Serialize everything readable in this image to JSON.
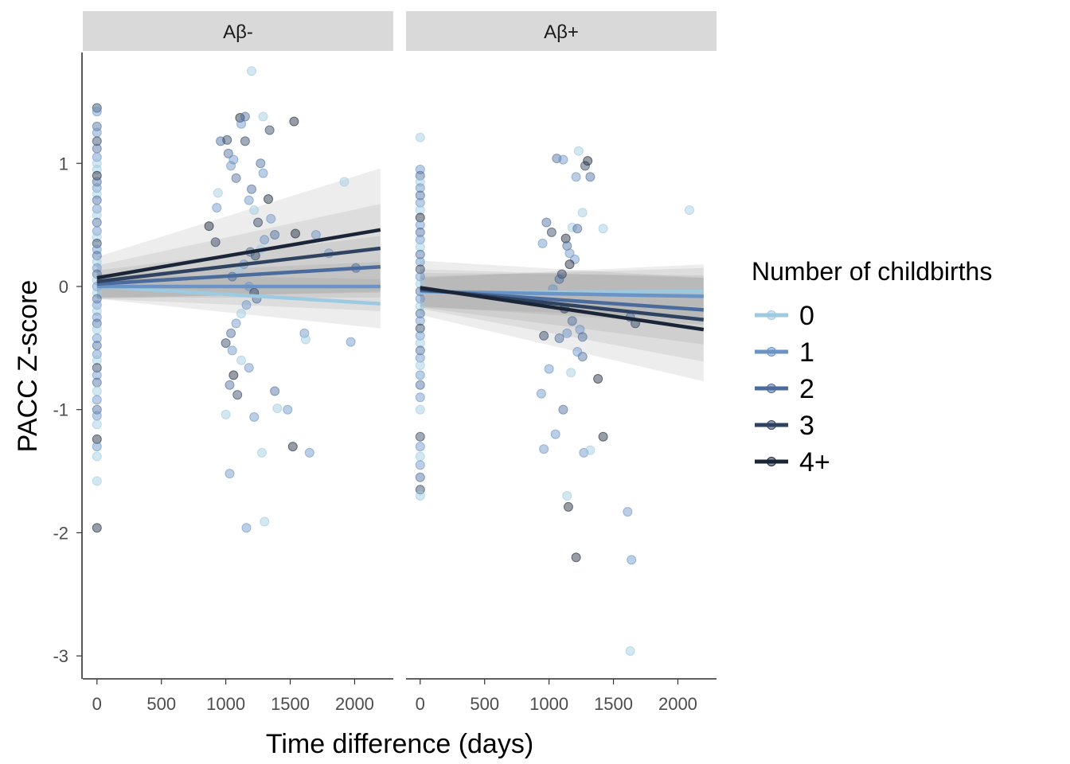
{
  "chart_data": {
    "type": "scatter",
    "xlabel": "Time difference (days)",
    "ylabel": "PACC Z-score",
    "xlim": [
      -110,
      2300
    ],
    "ylim": [
      -3.18,
      1.9
    ],
    "x_ticks": [
      0,
      500,
      1000,
      1500,
      2000
    ],
    "y_ticks": [
      1,
      0,
      -1,
      -2,
      -3
    ],
    "grid": false,
    "legend": {
      "title": "Number of childbirths",
      "placement": "right",
      "entries": [
        {
          "label": "0",
          "color": "#9ecae1"
        },
        {
          "label": "1",
          "color": "#6b93c5"
        },
        {
          "label": "2",
          "color": "#4a6b9b"
        },
        {
          "label": "3",
          "color": "#2f4360"
        },
        {
          "label": "4+",
          "color": "#1b2538"
        }
      ]
    },
    "panels": [
      {
        "strip": "Aβ-",
        "lines": [
          {
            "group": "0",
            "x": [
              0,
              2200
            ],
            "y": [
              0.0,
              -0.14
            ],
            "ci_halfwidth": [
              0.1,
              0.2
            ]
          },
          {
            "group": "1",
            "x": [
              0,
              2200
            ],
            "y": [
              0.0,
              0.0
            ],
            "ci_halfwidth": [
              0.1,
              0.2
            ]
          },
          {
            "group": "2",
            "x": [
              0,
              2200
            ],
            "y": [
              0.02,
              0.16
            ],
            "ci_halfwidth": [
              0.11,
              0.25
            ]
          },
          {
            "group": "3",
            "x": [
              0,
              2200
            ],
            "y": [
              0.04,
              0.31
            ],
            "ci_halfwidth": [
              0.13,
              0.36
            ]
          },
          {
            "group": "4+",
            "x": [
              0,
              2200
            ],
            "y": [
              0.07,
              0.46
            ],
            "ci_halfwidth": [
              0.17,
              0.5
            ]
          }
        ],
        "points": [
          [
            0,
            1.45,
            "3"
          ],
          [
            0,
            1.42,
            "1"
          ],
          [
            0,
            1.3,
            "2"
          ],
          [
            0,
            1.25,
            "1"
          ],
          [
            0,
            1.18,
            "3"
          ],
          [
            0,
            1.12,
            "2"
          ],
          [
            0,
            1.05,
            "1"
          ],
          [
            0,
            1.0,
            "0"
          ],
          [
            0,
            0.95,
            "0"
          ],
          [
            0,
            0.9,
            "4+"
          ],
          [
            0,
            0.85,
            "2"
          ],
          [
            0,
            0.8,
            "1"
          ],
          [
            0,
            0.75,
            "0"
          ],
          [
            0,
            0.7,
            "2"
          ],
          [
            0,
            0.63,
            "1"
          ],
          [
            0,
            0.58,
            "0"
          ],
          [
            0,
            0.52,
            "2"
          ],
          [
            0,
            0.45,
            "1"
          ],
          [
            0,
            0.4,
            "0"
          ],
          [
            0,
            0.35,
            "3"
          ],
          [
            0,
            0.3,
            "1"
          ],
          [
            0,
            0.25,
            "2"
          ],
          [
            0,
            0.2,
            "0"
          ],
          [
            0,
            0.15,
            "1"
          ],
          [
            0,
            0.1,
            "2"
          ],
          [
            0,
            0.05,
            "0"
          ],
          [
            0,
            0.0,
            "1"
          ],
          [
            0,
            -0.05,
            "0"
          ],
          [
            0,
            -0.1,
            "2"
          ],
          [
            0,
            -0.15,
            "1"
          ],
          [
            0,
            -0.2,
            "0"
          ],
          [
            0,
            -0.25,
            "1"
          ],
          [
            0,
            -0.3,
            "2"
          ],
          [
            0,
            -0.35,
            "0"
          ],
          [
            0,
            -0.42,
            "1"
          ],
          [
            0,
            -0.48,
            "2"
          ],
          [
            0,
            -0.55,
            "1"
          ],
          [
            0,
            -0.6,
            "0"
          ],
          [
            0,
            -0.66,
            "3"
          ],
          [
            0,
            -0.72,
            "1"
          ],
          [
            0,
            -0.78,
            "2"
          ],
          [
            0,
            -0.85,
            "0"
          ],
          [
            0,
            -0.92,
            "1"
          ],
          [
            0,
            -1.0,
            "2"
          ],
          [
            0,
            -1.05,
            "1"
          ],
          [
            0,
            -1.12,
            "0"
          ],
          [
            0,
            -1.24,
            "4+"
          ],
          [
            0,
            -1.3,
            "1"
          ],
          [
            0,
            -1.38,
            "0"
          ],
          [
            0,
            -1.58,
            "0"
          ],
          [
            0,
            -1.96,
            "4+"
          ],
          [
            870,
            0.49,
            "4+"
          ],
          [
            960,
            1.18,
            "2"
          ],
          [
            940,
            0.76,
            "0"
          ],
          [
            930,
            0.64,
            "1"
          ],
          [
            920,
            0.36,
            "3"
          ],
          [
            1010,
            1.19,
            "3"
          ],
          [
            1020,
            1.08,
            "2"
          ],
          [
            1060,
            1.03,
            "1"
          ],
          [
            1040,
            0.98,
            "1"
          ],
          [
            1080,
            0.88,
            "2"
          ],
          [
            1110,
            1.37,
            "4+"
          ],
          [
            1120,
            1.32,
            "1"
          ],
          [
            1150,
            1.38,
            "2"
          ],
          [
            1150,
            1.18,
            "3"
          ],
          [
            1200,
            1.75,
            "0"
          ],
          [
            1200,
            0.79,
            "2"
          ],
          [
            1180,
            0.7,
            "1"
          ],
          [
            1220,
            0.62,
            "0"
          ],
          [
            1250,
            0.52,
            "3"
          ],
          [
            1270,
            1.0,
            "2"
          ],
          [
            1290,
            0.92,
            "1"
          ],
          [
            1330,
            0.71,
            "4+"
          ],
          [
            1350,
            0.55,
            "1"
          ],
          [
            1380,
            0.42,
            "2"
          ],
          [
            1300,
            0.38,
            "1"
          ],
          [
            1270,
            0.3,
            "0"
          ],
          [
            1230,
            0.25,
            "3"
          ],
          [
            1190,
            0.28,
            "2"
          ],
          [
            1140,
            0.18,
            "1"
          ],
          [
            1100,
            0.12,
            "0"
          ],
          [
            1050,
            0.08,
            "2"
          ],
          [
            1180,
            0.0,
            "1"
          ],
          [
            1220,
            -0.05,
            "3"
          ],
          [
            1240,
            -0.1,
            "2"
          ],
          [
            1160,
            -0.15,
            "1"
          ],
          [
            1120,
            -0.22,
            "0"
          ],
          [
            1080,
            -0.3,
            "1"
          ],
          [
            1040,
            -0.38,
            "2"
          ],
          [
            1000,
            -0.46,
            "3"
          ],
          [
            1050,
            -0.52,
            "1"
          ],
          [
            1120,
            -0.6,
            "0"
          ],
          [
            1180,
            -0.66,
            "1"
          ],
          [
            1060,
            -0.72,
            "4+"
          ],
          [
            1030,
            -0.8,
            "2"
          ],
          [
            1090,
            -0.88,
            "3"
          ],
          [
            1220,
            -1.06,
            "1"
          ],
          [
            1280,
            -1.35,
            "0"
          ],
          [
            1300,
            -1.91,
            "0"
          ],
          [
            1160,
            -1.96,
            "1"
          ],
          [
            1030,
            -1.52,
            "1"
          ],
          [
            1000,
            -1.04,
            "0"
          ],
          [
            1380,
            -0.85,
            "2"
          ],
          [
            1480,
            -1.0,
            "1"
          ],
          [
            1400,
            -0.99,
            "0"
          ],
          [
            1520,
            -1.3,
            "4+"
          ],
          [
            1650,
            -1.35,
            "1"
          ],
          [
            1610,
            -0.38,
            "1"
          ],
          [
            1620,
            -0.43,
            "0"
          ],
          [
            1540,
            0.43,
            "4+"
          ],
          [
            1530,
            1.34,
            "4+"
          ],
          [
            1340,
            1.27,
            "3"
          ],
          [
            1290,
            1.38,
            "0"
          ],
          [
            1700,
            0.42,
            "1"
          ],
          [
            1800,
            0.27,
            "1"
          ],
          [
            1920,
            0.85,
            "0"
          ],
          [
            1970,
            -0.45,
            "1"
          ],
          [
            2010,
            0.15,
            "2"
          ]
        ]
      },
      {
        "strip": "Aβ+",
        "lines": [
          {
            "group": "0",
            "x": [
              0,
              2200
            ],
            "y": [
              -0.05,
              -0.04
            ],
            "ci_halfwidth": [
              0.12,
              0.22
            ]
          },
          {
            "group": "1",
            "x": [
              0,
              2200
            ],
            "y": [
              -0.04,
              -0.08
            ],
            "ci_halfwidth": [
              0.12,
              0.23
            ]
          },
          {
            "group": "2",
            "x": [
              0,
              2200
            ],
            "y": [
              -0.03,
              -0.19
            ],
            "ci_halfwidth": [
              0.14,
              0.28
            ]
          },
          {
            "group": "3",
            "x": [
              0,
              2200
            ],
            "y": [
              -0.02,
              -0.27
            ],
            "ci_halfwidth": [
              0.16,
              0.34
            ]
          },
          {
            "group": "4+",
            "x": [
              0,
              2200
            ],
            "y": [
              -0.01,
              -0.35
            ],
            "ci_halfwidth": [
              0.22,
              0.42
            ]
          }
        ],
        "points": [
          [
            0,
            1.21,
            "0"
          ],
          [
            0,
            0.95,
            "1"
          ],
          [
            0,
            0.9,
            "2"
          ],
          [
            0,
            0.85,
            "0"
          ],
          [
            0,
            0.8,
            "1"
          ],
          [
            0,
            0.74,
            "2"
          ],
          [
            0,
            0.68,
            "1"
          ],
          [
            0,
            0.62,
            "0"
          ],
          [
            0,
            0.56,
            "4+"
          ],
          [
            0,
            0.5,
            "1"
          ],
          [
            0,
            0.44,
            "2"
          ],
          [
            0,
            0.38,
            "1"
          ],
          [
            0,
            0.32,
            "0"
          ],
          [
            0,
            0.26,
            "2"
          ],
          [
            0,
            0.2,
            "1"
          ],
          [
            0,
            0.14,
            "3"
          ],
          [
            0,
            0.08,
            "1"
          ],
          [
            0,
            0.02,
            "0"
          ],
          [
            0,
            -0.04,
            "2"
          ],
          [
            0,
            -0.1,
            "1"
          ],
          [
            0,
            -0.16,
            "0"
          ],
          [
            0,
            -0.22,
            "2"
          ],
          [
            0,
            -0.28,
            "1"
          ],
          [
            0,
            -0.34,
            "3"
          ],
          [
            0,
            -0.4,
            "1"
          ],
          [
            0,
            -0.46,
            "0"
          ],
          [
            0,
            -0.52,
            "2"
          ],
          [
            0,
            -0.58,
            "1"
          ],
          [
            0,
            -0.64,
            "0"
          ],
          [
            0,
            -0.72,
            "1"
          ],
          [
            0,
            -0.8,
            "2"
          ],
          [
            0,
            -0.9,
            "1"
          ],
          [
            0,
            -1.0,
            "0"
          ],
          [
            0,
            -1.22,
            "3"
          ],
          [
            0,
            -1.3,
            "1"
          ],
          [
            0,
            -1.38,
            "0"
          ],
          [
            0,
            -1.45,
            "1"
          ],
          [
            0,
            -1.55,
            "2"
          ],
          [
            0,
            -1.65,
            "3"
          ],
          [
            0,
            -1.7,
            "0"
          ],
          [
            950,
            0.35,
            "1"
          ],
          [
            980,
            0.52,
            "2"
          ],
          [
            1020,
            0.44,
            "3"
          ],
          [
            1060,
            1.04,
            "2"
          ],
          [
            1110,
            1.03,
            "1"
          ],
          [
            1130,
            0.39,
            "4+"
          ],
          [
            1140,
            0.33,
            "2"
          ],
          [
            1160,
            0.27,
            "1"
          ],
          [
            1180,
            0.48,
            "0"
          ],
          [
            1210,
            0.89,
            "1"
          ],
          [
            1230,
            1.1,
            "0"
          ],
          [
            1260,
            0.6,
            "0"
          ],
          [
            1280,
            0.98,
            "3"
          ],
          [
            1300,
            1.02,
            "4+"
          ],
          [
            1320,
            0.89,
            "2"
          ],
          [
            1220,
            0.47,
            "2"
          ],
          [
            1200,
            0.22,
            "1"
          ],
          [
            1160,
            0.18,
            "4+"
          ],
          [
            1100,
            0.1,
            "3"
          ],
          [
            1080,
            0.06,
            "2"
          ],
          [
            1030,
            -0.02,
            "1"
          ],
          [
            1120,
            -0.18,
            "3"
          ],
          [
            1180,
            -0.28,
            "2"
          ],
          [
            1240,
            -0.35,
            "1"
          ],
          [
            1260,
            -0.41,
            "2"
          ],
          [
            1140,
            -0.38,
            "1"
          ],
          [
            1080,
            -0.42,
            "2"
          ],
          [
            960,
            -0.4,
            "3"
          ],
          [
            1000,
            -0.67,
            "1"
          ],
          [
            1170,
            -0.7,
            "0"
          ],
          [
            1260,
            -0.57,
            "2"
          ],
          [
            1220,
            -0.53,
            "1"
          ],
          [
            1380,
            -0.75,
            "4+"
          ],
          [
            940,
            -0.87,
            "1"
          ],
          [
            1110,
            -1.0,
            "2"
          ],
          [
            1050,
            -1.2,
            "1"
          ],
          [
            960,
            -1.32,
            "1"
          ],
          [
            1270,
            -1.35,
            "1"
          ],
          [
            1320,
            -1.33,
            "0"
          ],
          [
            1420,
            -1.22,
            "4+"
          ],
          [
            1140,
            -1.7,
            "0"
          ],
          [
            1150,
            -1.79,
            "4+"
          ],
          [
            1210,
            -2.2,
            "4+"
          ],
          [
            1610,
            -1.83,
            "1"
          ],
          [
            1640,
            -2.22,
            "1"
          ],
          [
            1630,
            -2.96,
            "0"
          ],
          [
            1420,
            0.47,
            "0"
          ],
          [
            1670,
            -0.3,
            "3"
          ],
          [
            1630,
            -0.25,
            "2"
          ],
          [
            2090,
            0.62,
            "0"
          ]
        ]
      }
    ]
  }
}
